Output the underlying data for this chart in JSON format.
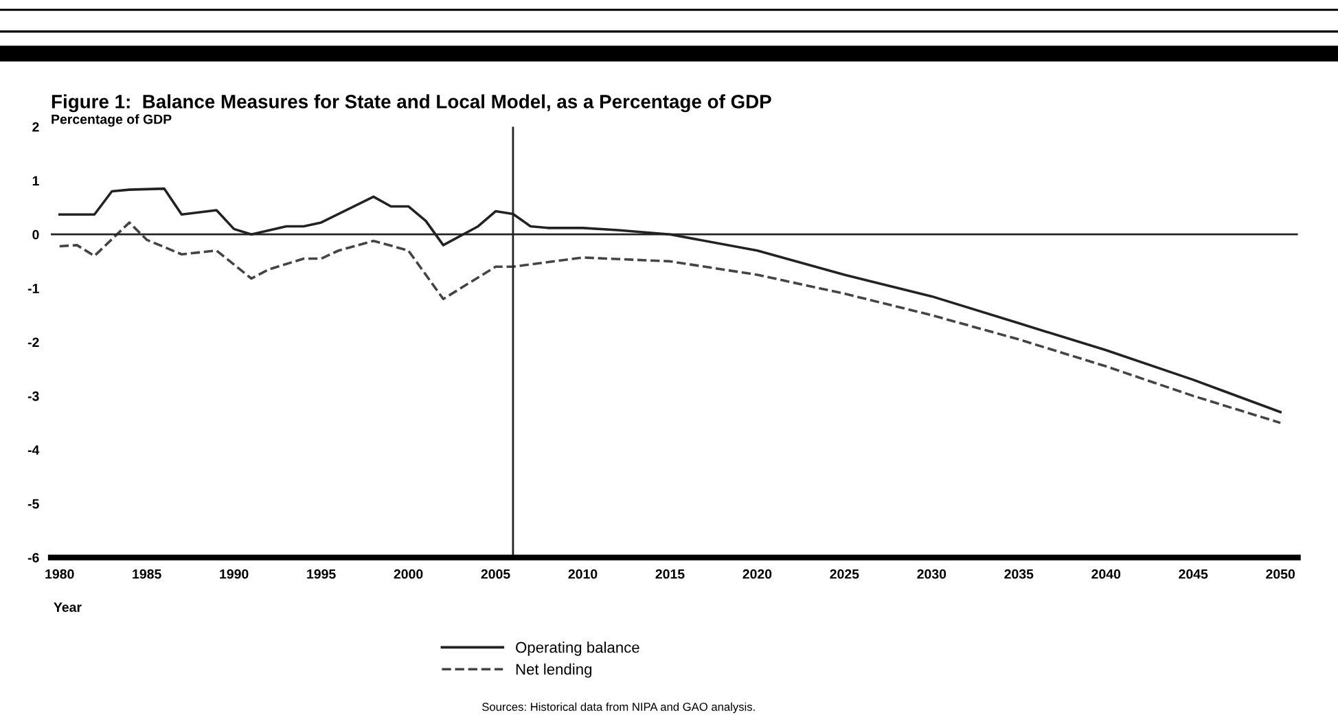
{
  "chart_data": {
    "type": "line",
    "title": "Figure 1:  Balance Measures for State and Local Model, as a Percentage of GDP",
    "ylabel": "Percentage of GDP",
    "xlabel": "Year",
    "series": [
      {
        "name": "Operating balance",
        "color": "#222222",
        "line_style": "solid",
        "x": [
          1980,
          1982,
          1983,
          1984,
          1986,
          1987,
          1989,
          1990,
          1991,
          1993,
          1994,
          1995,
          1998,
          1999,
          2000,
          2001,
          2002,
          2004,
          2005,
          2006,
          2007,
          2008,
          2010,
          2012,
          2015,
          2020,
          2025,
          2030,
          2035,
          2040,
          2045,
          2050
        ],
        "values": [
          0.37,
          0.37,
          0.8,
          0.83,
          0.85,
          0.37,
          0.45,
          0.1,
          0.0,
          0.15,
          0.15,
          0.22,
          0.7,
          0.52,
          0.52,
          0.25,
          -0.2,
          0.15,
          0.43,
          0.38,
          0.15,
          0.12,
          0.12,
          0.08,
          0.0,
          -0.3,
          -0.75,
          -1.15,
          -1.65,
          -2.15,
          -2.7,
          -3.3
        ]
      },
      {
        "name": "Net lending",
        "color": "#444444",
        "line_style": "dashed",
        "x": [
          1980,
          1981,
          1982,
          1984,
          1985,
          1987,
          1989,
          1991,
          1992,
          1994,
          1995,
          1996,
          1998,
          2000,
          2002,
          2005,
          2006,
          2010,
          2015,
          2020,
          2025,
          2030,
          2035,
          2040,
          2045,
          2050
        ],
        "values": [
          -0.22,
          -0.2,
          -0.4,
          0.22,
          -0.1,
          -0.37,
          -0.3,
          -0.82,
          -0.65,
          -0.45,
          -0.45,
          -0.3,
          -0.12,
          -0.3,
          -1.2,
          -0.6,
          -0.6,
          -0.43,
          -0.5,
          -0.75,
          -1.1,
          -1.5,
          -1.95,
          -2.45,
          -3.0,
          -3.5
        ]
      }
    ],
    "xlim": [
      1979.5,
      2051
    ],
    "xticks": [
      1980,
      1985,
      1990,
      1995,
      2000,
      2005,
      2010,
      2015,
      2020,
      2025,
      2030,
      2035,
      2040,
      2045,
      2050
    ],
    "ylim": [
      -6,
      2
    ],
    "yticks": [
      -6,
      -5,
      -4,
      -3,
      -2,
      -1,
      0,
      1,
      2
    ],
    "ref_lines": [
      {
        "axis": "y",
        "value": 0,
        "color": "#222222"
      },
      {
        "axis": "x",
        "value": 2006,
        "color": "#222222"
      }
    ],
    "grid": false,
    "legend": "bottom",
    "annotations": [
      "Sources: Historical data from NIPA and GAO analysis."
    ]
  }
}
